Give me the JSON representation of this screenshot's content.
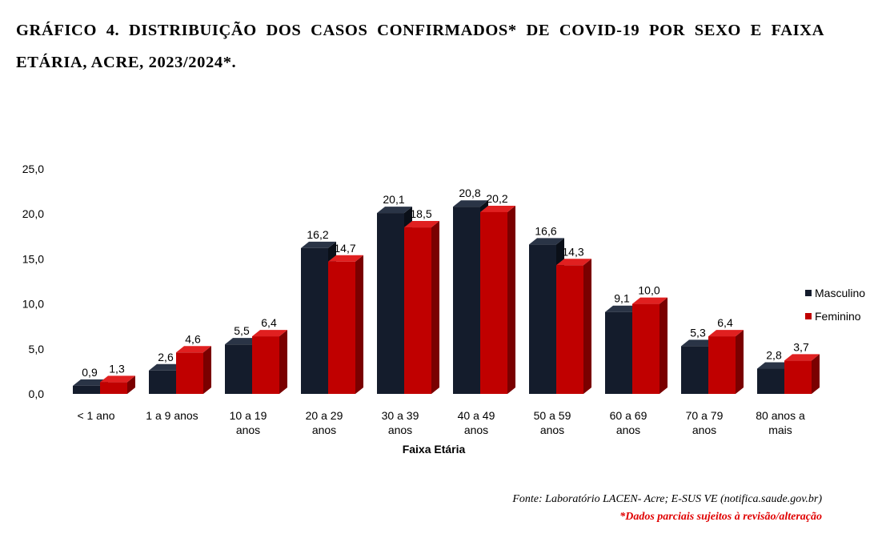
{
  "chart_data": {
    "type": "bar",
    "title": "GRÁFICO 4. DISTRIBUIÇÃO DOS CASOS CONFIRMADOS* DE COVID-19 POR SEXO E FAIXA ETÁRIA, ACRE, 2023/2024*.",
    "xlabel": "Faixa Etária",
    "ylabel": "",
    "ylim": [
      0,
      25
    ],
    "yticks": [
      "0,0",
      "5,0",
      "10,0",
      "15,0",
      "20,0",
      "25,0"
    ],
    "categories": [
      [
        "< 1 ano"
      ],
      [
        "1 a 9 anos"
      ],
      [
        "10 a 19",
        "anos"
      ],
      [
        "20 a 29",
        "anos"
      ],
      [
        "30 a 39",
        "anos"
      ],
      [
        "40 a 49",
        "anos"
      ],
      [
        "50 a 59",
        "anos"
      ],
      [
        "60 a 69",
        "anos"
      ],
      [
        "70 a 79",
        "anos"
      ],
      [
        "80 anos a",
        "mais"
      ]
    ],
    "series": [
      {
        "name": "Masculino",
        "color": "#141c2c",
        "values": [
          0.9,
          2.6,
          5.5,
          16.2,
          20.1,
          20.8,
          16.6,
          9.1,
          5.3,
          2.8
        ]
      },
      {
        "name": "Feminino",
        "color": "#c00000",
        "values": [
          1.3,
          4.6,
          6.4,
          14.7,
          18.5,
          20.2,
          14.3,
          10.0,
          6.4,
          3.7
        ]
      }
    ],
    "legend": "right",
    "grid": false
  },
  "source": "Fonte: Laboratório LACEN- Acre; E-SUS VE (notifica.saude.gov.br)",
  "note": "*Dados parciais sujeitos à revisão/alteração"
}
